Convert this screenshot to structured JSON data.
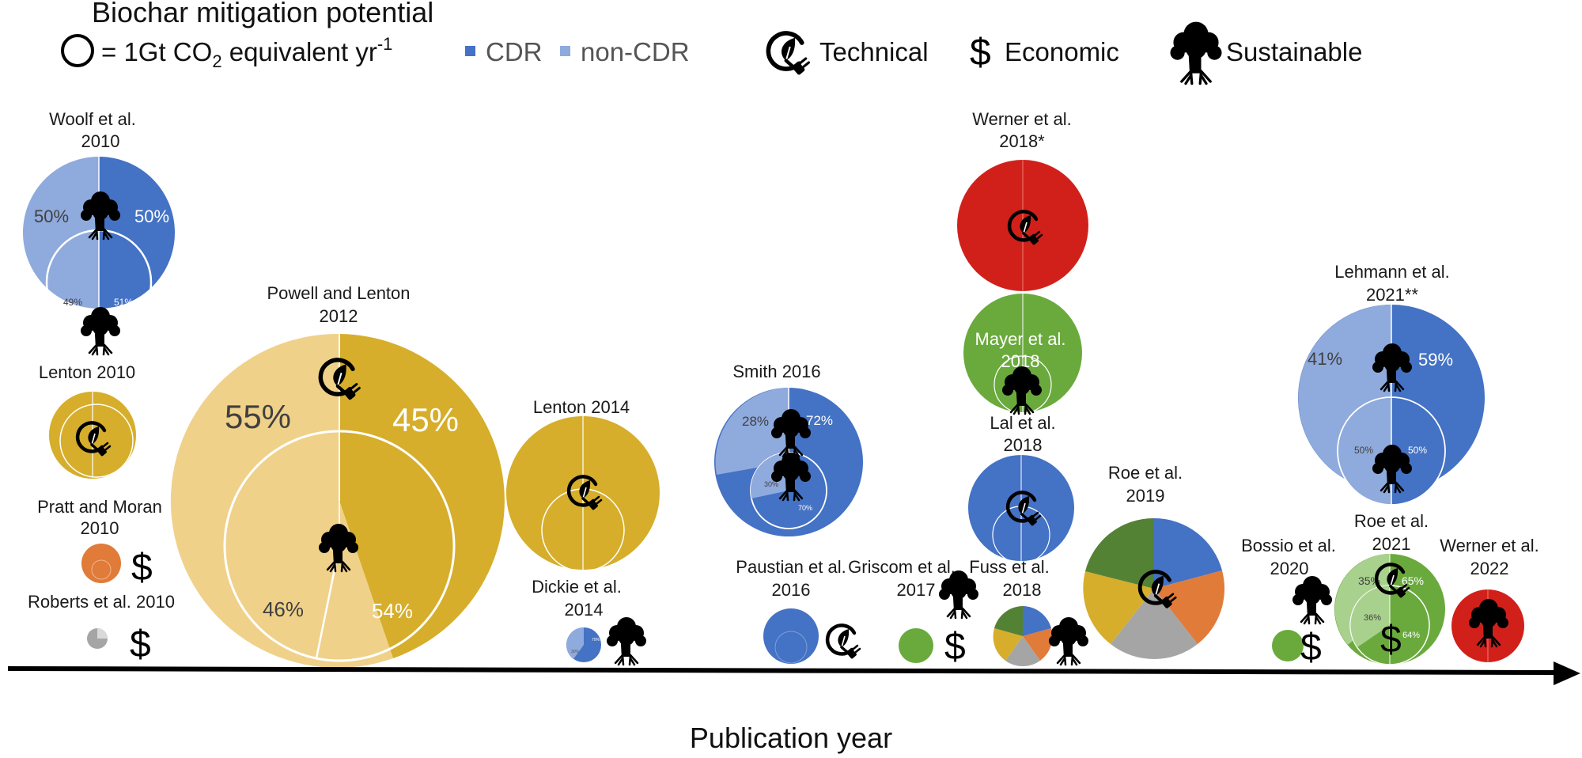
{
  "title": "Biochar mitigation potential",
  "legend": {
    "circle_text": "= 1Gt CO",
    "circle_sub": "2",
    "circle_rest": " equivalent yr",
    "circle_sup": "-1",
    "cdr": "CDR",
    "non_cdr": "non-CDR",
    "technical": "Technical",
    "economic": "Economic",
    "sustainable": "Sustainable",
    "economic_symbol": "$"
  },
  "colors": {
    "cdr": "#4472C4",
    "non_cdr": "#8FAADC",
    "gold": "#D6AE2B",
    "gold_light": "#F0D18A",
    "orange": "#E07B39",
    "red": "#D1201A",
    "green": "#6AAA3D",
    "green_light": "#A9D18E",
    "dark_green": "#548235",
    "gray": "#A5A5A5"
  },
  "xaxis_label": "Publication year",
  "studies": {
    "woolf": {
      "line1": "Woolf et al.",
      "line2": "2010",
      "outer_left": "50%",
      "outer_right": "50%",
      "inner_left": "49%",
      "inner_right": "51%",
      "outer_cdr_fraction": 0.5,
      "inner_cdr_fraction": 0.51
    },
    "lenton2010": {
      "line1": "Lenton 2010"
    },
    "pratt": {
      "line1": "Pratt and Moran",
      "line2": "2010",
      "economic": "$"
    },
    "roberts": {
      "line1": "Roberts et al. 2010",
      "economic": "$"
    },
    "powell": {
      "line1": "Powell and Lenton",
      "line2": "2012",
      "outer_left": "55%",
      "outer_right": "45%",
      "inner_left": "46%",
      "inner_right": "54%",
      "outer_right_fraction": 0.45,
      "inner_right_fraction": 0.54
    },
    "lenton2014": {
      "line1": "Lenton 2014"
    },
    "dickie": {
      "line1": "Dickie et al.",
      "line2": "2014",
      "right_pct": "70%",
      "left_pct": "30%"
    },
    "smith": {
      "line1": "Smith 2016",
      "outer_left": "28%",
      "outer_right": "72%",
      "inner_left": "30%",
      "inner_right": "70%",
      "outer_cdr_fraction": 0.72,
      "inner_cdr_fraction": 0.7
    },
    "paustian": {
      "line1": "Paustian et al.",
      "line2": "2016"
    },
    "griscom": {
      "line1": "Griscom et al.",
      "line2": "2017",
      "economic": "$"
    },
    "werner2018": {
      "line1": "Werner et al.",
      "line2": "2018*"
    },
    "mayer": {
      "line1": "Mayer et al.",
      "line2": "2018"
    },
    "lal": {
      "line1": "Lal et al.",
      "line2": "2018"
    },
    "fuss": {
      "line1": "Fuss et al.",
      "line2": "2018"
    },
    "roe2019": {
      "line1": "Roe et al.",
      "line2": "2019"
    },
    "bossio": {
      "line1": "Bossio et al.",
      "line2": "2020",
      "economic": "$"
    },
    "roe2021": {
      "line1": "Roe et al.",
      "line2": "2021",
      "outer_left": "35%",
      "outer_right": "65%",
      "inner_left": "36%",
      "inner_right": "64%",
      "economic": "$"
    },
    "lehmann": {
      "line1": "Lehmann et al.",
      "line2": "2021**",
      "outer_left": "41%",
      "outer_right": "59%",
      "inner_left": "50%",
      "inner_right": "50%",
      "outer_cdr_fraction": 0.59,
      "inner_cdr_fraction": 0.5
    },
    "werner2022": {
      "line1": "Werner et al.",
      "line2": "2022"
    }
  }
}
